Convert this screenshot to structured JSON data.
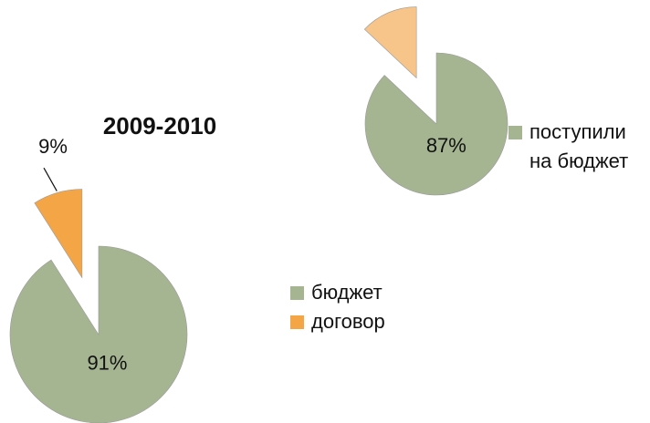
{
  "chart_data": [
    {
      "type": "pie",
      "title": "2009-2010",
      "categories": [
        "бюджет",
        "договор"
      ],
      "values": [
        91,
        9
      ],
      "value_labels": [
        "91%",
        "9%"
      ],
      "colors": [
        "#a5b592",
        "#f4a646"
      ],
      "legend": "right"
    },
    {
      "type": "pie",
      "categories": [
        "поступили на бюджет",
        null
      ],
      "values": [
        87,
        13
      ],
      "value_labels": [
        "87%",
        null
      ],
      "colors": [
        "#a5b592",
        "#f7c58a"
      ],
      "legend": "right"
    }
  ]
}
